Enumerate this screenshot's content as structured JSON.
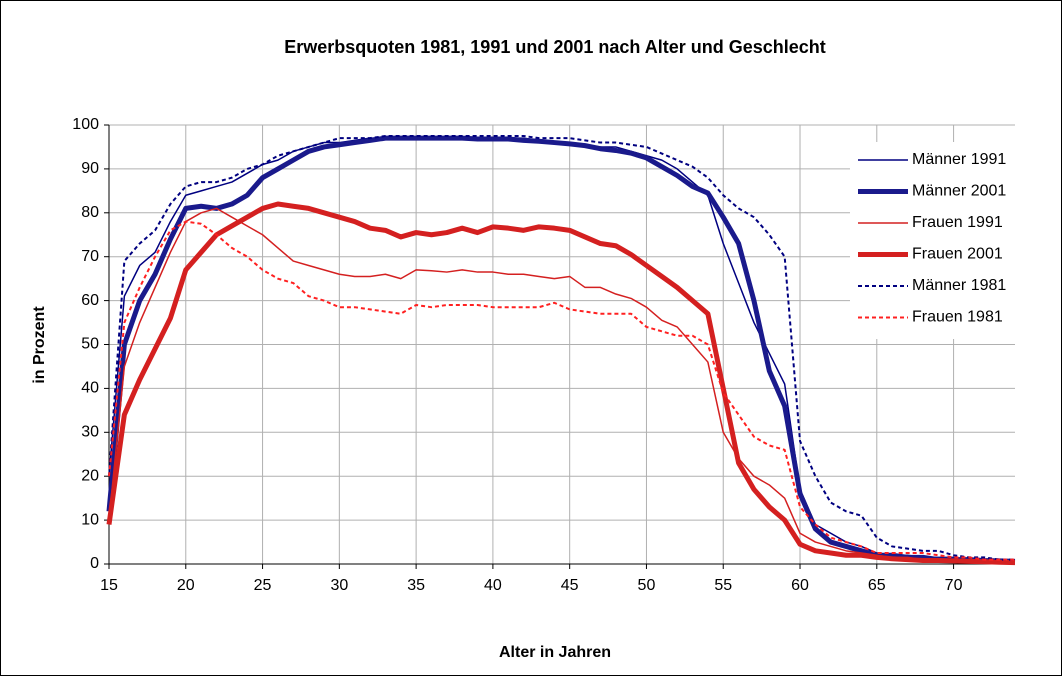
{
  "chart_data": {
    "type": "line",
    "title": "Erwerbsquoten 1981, 1991 und 2001 nach Alter und Geschlecht",
    "xlabel": "Alter in Jahren",
    "ylabel": "in Prozent",
    "x": [
      15,
      16,
      17,
      18,
      19,
      20,
      21,
      22,
      23,
      24,
      25,
      26,
      27,
      28,
      29,
      30,
      31,
      32,
      33,
      34,
      35,
      36,
      37,
      38,
      39,
      40,
      41,
      42,
      43,
      44,
      45,
      46,
      47,
      48,
      49,
      50,
      51,
      52,
      53,
      54,
      55,
      56,
      57,
      58,
      59,
      60,
      61,
      62,
      63,
      64,
      65,
      66,
      67,
      68,
      69,
      70,
      71,
      72,
      73,
      74
    ],
    "xlim": [
      15,
      74
    ],
    "xticks": [
      15,
      20,
      25,
      30,
      35,
      40,
      45,
      50,
      55,
      60,
      65,
      70
    ],
    "ylim": [
      0,
      100
    ],
    "yticks": [
      0,
      10,
      20,
      30,
      40,
      50,
      60,
      70,
      80,
      90,
      100
    ],
    "grid": true,
    "legend": "right",
    "series": [
      {
        "name": "Männer 1991",
        "color": "#000080",
        "line_width": 1.5,
        "dashed": false,
        "values": [
          20,
          61,
          68,
          71,
          78,
          84,
          85,
          86,
          87,
          89,
          91,
          92,
          94,
          95,
          96,
          96,
          96.5,
          97,
          97,
          97,
          97,
          97,
          97,
          97,
          97,
          97,
          97,
          97,
          96.5,
          96,
          96,
          95.5,
          95,
          95,
          94,
          93,
          92,
          90,
          87,
          84,
          73,
          64,
          55,
          48,
          41,
          17,
          9,
          7,
          5,
          4,
          2.5,
          2,
          2,
          1.5,
          1.5,
          1.5,
          1,
          1,
          1,
          0.8
        ]
      },
      {
        "name": "Männer 2001",
        "color": "#1a1a8c",
        "line_width": 5,
        "dashed": false,
        "values": [
          12,
          50,
          60,
          66,
          74,
          81,
          81.5,
          81,
          82,
          84,
          88,
          90,
          92,
          94,
          95,
          95.5,
          96,
          96.5,
          97,
          97,
          97,
          97,
          97,
          97,
          96.8,
          96.8,
          96.8,
          96.5,
          96.3,
          96,
          95.7,
          95.3,
          94.6,
          94.2,
          93.6,
          92.5,
          90.5,
          88.5,
          86,
          84.5,
          79,
          73,
          60,
          44,
          36,
          16,
          8,
          5,
          4,
          3,
          2,
          2,
          1.5,
          1.5,
          1,
          1,
          1,
          0.8,
          0.7,
          0.6
        ]
      },
      {
        "name": "Frauen 1991",
        "color": "#d42020",
        "line_width": 1.5,
        "dashed": false,
        "values": [
          10,
          45,
          55,
          63,
          71,
          78,
          80,
          81,
          79,
          77,
          75,
          72,
          69,
          68,
          67,
          66,
          65.5,
          65.5,
          66,
          65,
          67,
          66.8,
          66.5,
          67,
          66.5,
          66.5,
          66,
          66,
          65.5,
          65,
          65.5,
          63,
          63,
          61.5,
          60.5,
          58.5,
          55.5,
          54,
          50,
          46,
          30,
          24,
          20,
          18,
          15,
          7,
          5,
          4,
          3,
          2.5,
          2,
          1.5,
          1.5,
          1,
          1,
          1,
          0.8,
          0.7,
          0.6,
          0.5
        ]
      },
      {
        "name": "Frauen 2001",
        "color": "#d42020",
        "line_width": 5,
        "dashed": false,
        "values": [
          9,
          34,
          42,
          49,
          56,
          67,
          71,
          75,
          77,
          79,
          81,
          82,
          81.5,
          81,
          80,
          79,
          78,
          76.5,
          76,
          74.5,
          75.5,
          75,
          75.5,
          76.5,
          75.5,
          76.8,
          76.5,
          76,
          76.8,
          76.5,
          76,
          74.5,
          73,
          72.5,
          70.5,
          68,
          65.5,
          63,
          60,
          57,
          40,
          23,
          17,
          13,
          10,
          4.5,
          3,
          2.5,
          2,
          2,
          1.5,
          1.2,
          1,
          0.8,
          0.8,
          0.7,
          0.6,
          0.5,
          0.4,
          0.3
        ]
      },
      {
        "name": "Männer 1981",
        "color": "#000080",
        "line_width": 2,
        "dashed": true,
        "values": [
          20,
          69,
          73,
          76,
          82,
          86,
          87,
          87,
          88,
          90,
          91,
          93,
          94,
          95,
          96,
          97,
          97,
          97,
          97.5,
          97.5,
          97.5,
          97.5,
          97.5,
          97.5,
          97.5,
          97.5,
          97.5,
          97.5,
          97,
          97,
          97,
          96.5,
          96,
          96,
          95.5,
          95,
          93.5,
          92,
          90.5,
          88,
          84,
          81,
          79,
          75,
          70,
          28,
          20,
          14,
          12,
          11,
          6,
          4,
          3.5,
          3,
          3,
          2,
          1.5,
          1.5,
          1,
          1
        ]
      },
      {
        "name": "Frauen 1981",
        "color": "#ff2020",
        "line_width": 2,
        "dashed": true,
        "values": [
          20,
          55,
          63,
          70,
          76,
          78,
          77.5,
          75,
          72,
          70,
          67,
          65,
          64,
          61,
          60,
          58.5,
          58.5,
          58,
          57.5,
          57,
          59,
          58.5,
          59,
          59,
          59,
          58.5,
          58.5,
          58.5,
          58.5,
          59.5,
          58,
          57.5,
          57,
          57,
          57,
          54,
          53,
          52,
          52,
          50,
          39,
          34,
          29,
          27,
          26,
          13,
          9,
          6,
          5,
          4,
          2.5,
          2.5,
          2.5,
          2.5,
          2,
          1.5,
          1.5,
          1,
          1,
          1
        ]
      }
    ]
  }
}
